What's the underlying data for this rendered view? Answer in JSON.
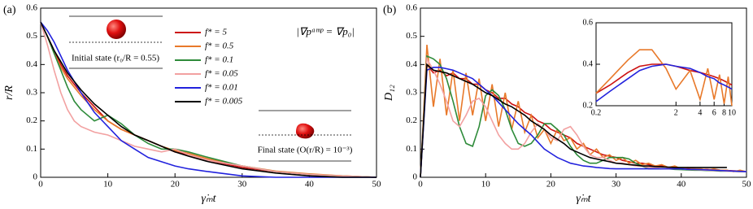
{
  "chart_data": [
    {
      "type": "line",
      "panel_label": "(a)",
      "y_label": "r/R",
      "x_label": "γ̇ₘt",
      "annotations": [
        "|∇pᵃᵐᵖ = ∇p₀|",
        "Initial state (r₀/R = 0.55)",
        "Final state (O(r/R) = 10⁻³)"
      ],
      "x": [
        0,
        1,
        2,
        3,
        4,
        5,
        6,
        8,
        10,
        12,
        14,
        16,
        18,
        20,
        22,
        25,
        30,
        35,
        40,
        45,
        50
      ],
      "xlim": [
        0,
        50
      ],
      "xticks": [
        0,
        10,
        20,
        30,
        40,
        50
      ],
      "ylim": [
        0,
        0.6
      ],
      "yticks": [
        0,
        0.1,
        0.2,
        0.3,
        0.4,
        0.5,
        0.6
      ],
      "series": [
        {
          "name": "f* = 5",
          "color": "#cc1111",
          "values": [
            0.55,
            0.5,
            0.45,
            0.4,
            0.36,
            0.33,
            0.3,
            0.25,
            0.2,
            0.17,
            0.15,
            0.13,
            0.11,
            0.09,
            0.08,
            0.06,
            0.035,
            0.02,
            0.01,
            0.005,
            0
          ]
        },
        {
          "name": "f* = 0.5",
          "color": "#e8792a",
          "values": [
            0.55,
            0.5,
            0.44,
            0.39,
            0.35,
            0.32,
            0.29,
            0.24,
            0.2,
            0.17,
            0.15,
            0.13,
            0.11,
            0.095,
            0.085,
            0.065,
            0.04,
            0.022,
            0.012,
            0.005,
            0
          ]
        },
        {
          "name": "f* = 0.1",
          "color": "#2e8b3a",
          "values": [
            0.55,
            0.5,
            0.44,
            0.38,
            0.32,
            0.27,
            0.24,
            0.2,
            0.22,
            0.19,
            0.15,
            0.12,
            0.1,
            0.1,
            0.09,
            0.07,
            0.04,
            0.02,
            0.01,
            0.004,
            0
          ]
        },
        {
          "name": "f* = 0.05",
          "color": "#f2a1a1",
          "values": [
            0.55,
            0.47,
            0.38,
            0.3,
            0.24,
            0.2,
            0.18,
            0.16,
            0.15,
            0.13,
            0.11,
            0.1,
            0.09,
            0.1,
            0.08,
            0.06,
            0.04,
            0.02,
            0.01,
            0.004,
            0
          ]
        },
        {
          "name": "f* = 0.01",
          "color": "#2222dd",
          "values": [
            0.55,
            0.52,
            0.48,
            0.43,
            0.38,
            0.34,
            0.3,
            0.23,
            0.18,
            0.13,
            0.1,
            0.07,
            0.055,
            0.04,
            0.03,
            0.02,
            0.005,
            0,
            0,
            0,
            0
          ]
        },
        {
          "name": "f* = 0.005",
          "color": "#000000",
          "values": [
            0.55,
            0.5,
            0.45,
            0.41,
            0.37,
            0.34,
            0.31,
            0.26,
            0.22,
            0.18,
            0.15,
            0.13,
            0.11,
            0.09,
            0.075,
            0.055,
            0.03,
            0.015,
            0.005,
            0,
            0
          ]
        }
      ]
    },
    {
      "type": "line",
      "panel_label": "(b)",
      "y_label": "D₁₂",
      "x_label": "γ̇ₘt",
      "x": [
        0,
        1,
        2,
        3,
        4,
        5,
        6,
        7,
        8,
        9,
        10,
        11,
        12,
        13,
        14,
        15,
        16,
        17,
        18,
        19,
        20,
        21,
        22,
        23,
        24,
        25,
        26,
        27,
        28,
        29,
        30,
        31,
        32,
        33,
        34,
        35,
        36,
        37,
        38,
        39,
        40,
        41,
        42,
        43,
        44,
        45,
        46,
        47,
        48,
        49,
        50
      ],
      "xlim": [
        0,
        50
      ],
      "xticks": [
        0,
        10,
        20,
        30,
        40,
        50
      ],
      "ylim": [
        0,
        0.6
      ],
      "yticks": [
        0,
        0.1,
        0.2,
        0.3,
        0.4,
        0.5,
        0.6
      ],
      "series": [
        {
          "name": "f* = 5",
          "color": "#cc1111",
          "values": [
            0,
            0.4,
            0.37,
            0.38,
            0.36,
            0.37,
            0.35,
            0.35,
            0.33,
            0.33,
            0.31,
            0.3,
            0.28,
            0.28,
            0.26,
            0.25,
            0.23,
            0.22,
            0.2,
            0.19,
            0.17,
            0.16,
            0.15,
            0.14,
            0.12,
            0.11,
            0.1,
            0.09,
            0.08,
            0.075,
            0.07,
            0.06,
            0.055,
            0.05,
            0.05,
            0.045,
            0.04,
            0.04,
            0.035,
            0.035,
            0.03,
            0.03,
            0.03,
            0.028,
            0.028,
            0.026,
            0.025,
            0.024,
            0.023,
            0.022,
            0.02
          ]
        },
        {
          "name": "f* = 0.5",
          "color": "#e8792a",
          "values": [
            0,
            0.47,
            0.25,
            0.42,
            0.22,
            0.38,
            0.2,
            0.37,
            0.22,
            0.35,
            0.2,
            0.33,
            0.18,
            0.3,
            0.17,
            0.27,
            0.16,
            0.22,
            0.14,
            0.17,
            0.12,
            0.17,
            0.13,
            0.14,
            0.1,
            0.12,
            0.08,
            0.1,
            0.07,
            0.08,
            0.06,
            0.07,
            0.05,
            0.06,
            0.045,
            0.05,
            0.04,
            0.045,
            0.035,
            0.04,
            0.03,
            0.035,
            0.03,
            0.03,
            0.025,
            0.03,
            0.025,
            0.025,
            0.02,
            0.025,
            0.02
          ]
        },
        {
          "name": "f* = 0.1",
          "color": "#2e8b3a",
          "values": [
            0,
            0.43,
            0.42,
            0.4,
            0.35,
            0.27,
            0.18,
            0.12,
            0.11,
            0.18,
            0.29,
            0.31,
            0.29,
            0.24,
            0.17,
            0.12,
            0.11,
            0.12,
            0.15,
            0.19,
            0.19,
            0.17,
            0.15,
            0.11,
            0.08,
            0.06,
            0.05,
            0.05,
            0.06,
            0.07,
            0.07,
            0.07,
            0.065,
            0.05,
            0.04,
            0.03,
            0.03,
            0.03,
            0.03,
            0.028,
            0.027,
            0.026,
            0.025,
            0.025,
            0.024,
            0.023,
            0.022,
            0.022,
            0.021,
            0.02,
            0.02
          ]
        },
        {
          "name": "f* = 0.05",
          "color": "#f2a1a1",
          "values": [
            0,
            0.42,
            0.38,
            0.33,
            0.27,
            0.2,
            0.18,
            0.22,
            0.27,
            0.28,
            0.25,
            0.2,
            0.15,
            0.12,
            0.1,
            0.1,
            0.12,
            0.16,
            0.19,
            0.17,
            0.14,
            0.13,
            0.17,
            0.18,
            0.15,
            0.11,
            0.08,
            0.07,
            0.07,
            0.06,
            0.05,
            0.05,
            0.045,
            0.04,
            0.04,
            0.035,
            0.035,
            0.03,
            0.03,
            0.03,
            0.03,
            0.028,
            0.027,
            0.026,
            0.025,
            0.024,
            0.023,
            0.022,
            0.021,
            0.02,
            0.02
          ]
        },
        {
          "name": "f* = 0.01",
          "color": "#2222dd",
          "values": [
            0,
            0.38,
            0.39,
            0.39,
            0.385,
            0.38,
            0.37,
            0.36,
            0.35,
            0.33,
            0.31,
            0.29,
            0.265,
            0.24,
            0.215,
            0.19,
            0.17,
            0.15,
            0.125,
            0.1,
            0.085,
            0.07,
            0.06,
            0.05,
            0.045,
            0.04,
            0.038,
            0.035,
            0.033,
            0.031,
            0.03,
            0.03,
            0.03,
            0.03,
            0.03,
            0.03,
            0.03,
            0.03,
            0.03,
            0.03,
            0.03,
            0.028,
            0.028,
            0.027,
            0.026,
            0.025,
            0.024,
            0.023,
            0.022,
            0.021,
            0.02
          ]
        },
        {
          "name": "f* = 0.005",
          "color": "#000000",
          "values": [
            0,
            0.4,
            0.38,
            0.375,
            0.37,
            0.36,
            0.35,
            0.34,
            0.33,
            0.315,
            0.3,
            0.29,
            0.275,
            0.26,
            0.25,
            0.235,
            0.22,
            0.2,
            0.185,
            0.17,
            0.15,
            0.135,
            0.12,
            0.1,
            0.09,
            0.08,
            0.07,
            0.065,
            0.06,
            0.055,
            0.05,
            0.048,
            0.045,
            0.043,
            0.04,
            0.04,
            0.038,
            0.037,
            0.036,
            0.035,
            0.035,
            0.035,
            0.035,
            0.035,
            0.035,
            0.035,
            0.035,
            0.035,
            null,
            null,
            null
          ]
        }
      ],
      "inset": {
        "type": "line",
        "xscale": "log",
        "x": [
          0.2,
          0.3,
          0.5,
          0.7,
          1,
          1.5,
          2,
          3,
          4,
          5,
          6,
          7,
          8,
          9,
          10
        ],
        "xlim": [
          0.2,
          10
        ],
        "xticks": [
          0.2,
          2,
          4,
          6,
          8,
          10
        ],
        "ylim": [
          0.2,
          0.6
        ],
        "yticks": [
          0.2,
          0.4,
          0.6
        ],
        "series": [
          {
            "color": "#cc1111",
            "values": [
              0.26,
              0.3,
              0.36,
              0.39,
              0.4,
              0.4,
              0.39,
              0.37,
              0.36,
              0.35,
              0.34,
              0.33,
              0.32,
              0.31,
              0.3
            ]
          },
          {
            "color": "#e8792a",
            "values": [
              0.26,
              0.33,
              0.42,
              0.47,
              0.47,
              0.38,
              0.28,
              0.37,
              0.23,
              0.38,
              0.23,
              0.35,
              0.21,
              0.34,
              0.2
            ]
          },
          {
            "color": "#2222dd",
            "values": [
              0.22,
              0.27,
              0.33,
              0.37,
              0.39,
              0.4,
              0.39,
              0.38,
              0.36,
              0.34,
              0.33,
              0.31,
              0.3,
              0.29,
              0.28
            ]
          }
        ]
      }
    }
  ]
}
